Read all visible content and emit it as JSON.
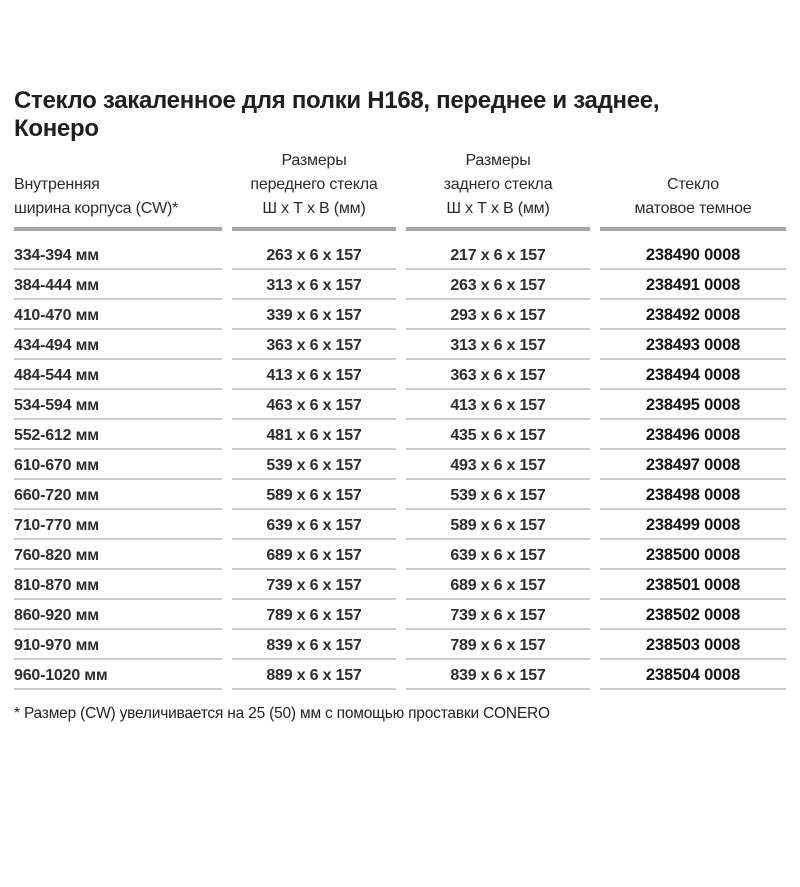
{
  "page": {
    "title_line1": "Стекло закаленное для полки Н168, переднее и заднее,",
    "title_line2": "Конеро",
    "footnote": "* Размер (CW) увеличивается на 25 (50) мм с помощью проставки CONERO"
  },
  "table": {
    "headers": {
      "cw": "Внутренняя\nширина корпуса  (CW)*",
      "front": "Размеры\nпереднего стекла\nШ х Т х В (мм)",
      "rear": "Размеры\nзаднего стекла\nШ х Т х В (мм)",
      "part": "Стекло\nматовое темное"
    },
    "rows": [
      {
        "cw": "334-394 мм",
        "front": "263 х 6 х 157",
        "rear": "217 х 6 х 157",
        "part": "238490 0008"
      },
      {
        "cw": "384-444 мм",
        "front": "313 х 6 х 157",
        "rear": "263 х 6 х 157",
        "part": "238491 0008"
      },
      {
        "cw": "410-470 мм",
        "front": "339 х 6 х 157",
        "rear": "293 х 6 х 157",
        "part": "238492 0008"
      },
      {
        "cw": "434-494 мм",
        "front": "363 х 6 х 157",
        "rear": "313 х 6 х 157",
        "part": "238493 0008"
      },
      {
        "cw": "484-544 мм",
        "front": "413 х 6 х 157",
        "rear": "363 х 6 х 157",
        "part": "238494 0008"
      },
      {
        "cw": "534-594 мм",
        "front": "463 х 6 х 157",
        "rear": "413 х 6 х 157",
        "part": "238495 0008"
      },
      {
        "cw": "552-612 мм",
        "front": "481 х 6 х 157",
        "rear": "435 х 6 х 157",
        "part": "238496 0008"
      },
      {
        "cw": "610-670 мм",
        "front": "539 х 6 х 157",
        "rear": "493 х 6 х 157",
        "part": "238497 0008"
      },
      {
        "cw": "660-720 мм",
        "front": "589 х 6 х 157",
        "rear": "539 х 6 х 157",
        "part": "238498 0008"
      },
      {
        "cw": "710-770 мм",
        "front": "639 х 6 х 157",
        "rear": "589 х 6 х 157",
        "part": "238499 0008"
      },
      {
        "cw": "760-820 мм",
        "front": "689 х 6 х 157",
        "rear": "639 х 6 х 157",
        "part": "238500 0008"
      },
      {
        "cw": "810-870 мм",
        "front": "739 х 6 х 157",
        "rear": "689 х 6 х 157",
        "part": "238501 0008"
      },
      {
        "cw": "860-920 мм",
        "front": "789 х 6 х 157",
        "rear": "739 х 6 х 157",
        "part": "238502 0008"
      },
      {
        "cw": "910-970 мм",
        "front": "839 х 6 х 157",
        "rear": "789 х 6 х 157",
        "part": "238503 0008"
      },
      {
        "cw": "960-1020 мм",
        "front": "889 х 6 х 157",
        "rear": "839 х 6 х 157",
        "part": "238504 0008"
      }
    ]
  },
  "colors": {
    "background": "#ffffff",
    "text": "#262626",
    "thick_rule": "#a6a6a6",
    "thin_rule": "#cbcbcb"
  }
}
